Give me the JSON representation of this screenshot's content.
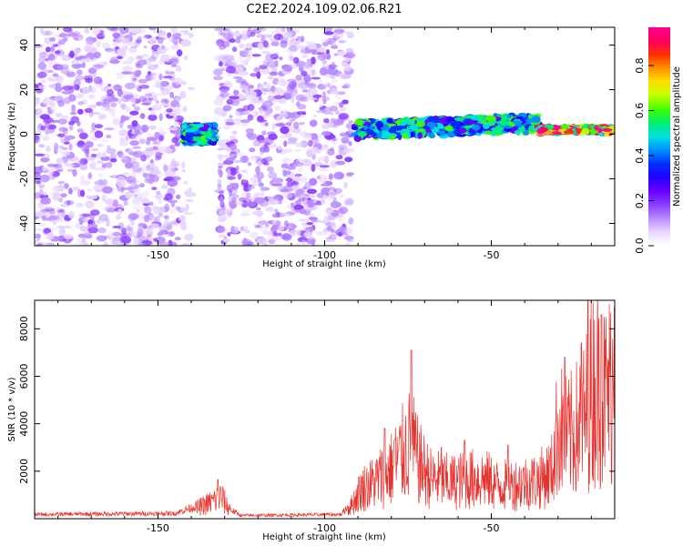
{
  "figure": {
    "title": "C2E2.2024.109.02.06.R21"
  },
  "chart_data": [
    {
      "type": "heatmap",
      "xlabel": "Height of straight line (km)",
      "ylabel": "Frequency (Hz)",
      "xlim": [
        -187,
        -13
      ],
      "ylim": [
        -50,
        48
      ],
      "xticks": [
        -150,
        -100,
        -50
      ],
      "xtick_labels": [
        "-150",
        "-100",
        "-50"
      ],
      "yticks": [
        -40,
        -20,
        0,
        20,
        40
      ],
      "ytick_labels": [
        "-40",
        "-20",
        "0",
        "20",
        "40"
      ],
      "colorbar": {
        "label": "Normalized spectral amplitude",
        "range": [
          0,
          0.97
        ],
        "ticks": [
          0.0,
          0.2,
          0.4,
          0.6,
          0.8
        ],
        "tick_labels": [
          "0.0",
          "0.2",
          "0.4",
          "0.6",
          "0.8"
        ],
        "colormap": [
          "#ffffff",
          "#e8d6ff",
          "#b98cff",
          "#8a3cff",
          "#6a00ff",
          "#2200ff",
          "#0030ff",
          "#0090ff",
          "#00e0e0",
          "#00f070",
          "#40ff00",
          "#c0ff00",
          "#ffe000",
          "#ff9000",
          "#ff3000",
          "#ff0060",
          "#ff0090"
        ]
      },
      "regions": [
        {
          "x": [
            -187,
            -143
          ],
          "f_center": 0,
          "f_width": 50,
          "amp": 0.12,
          "kind": "noise"
        },
        {
          "x": [
            -143,
            -140
          ],
          "f_center": 0,
          "f_width": 50,
          "amp": 0.06,
          "kind": "sparse"
        },
        {
          "x": [
            -142,
            -133
          ],
          "f_center": 0,
          "f_width": 4,
          "amp": 0.45,
          "kind": "signal"
        },
        {
          "x": [
            -132,
            -92
          ],
          "f_center": 0,
          "f_width": 50,
          "amp": 0.12,
          "kind": "noise"
        },
        {
          "x": [
            -91,
            -36
          ],
          "f_center": 2,
          "f_width": 4,
          "amp": 0.45,
          "kind": "signal"
        },
        {
          "x": [
            -36,
            -13
          ],
          "f_center": 2,
          "f_width": 1.5,
          "amp": 0.85,
          "kind": "strong"
        }
      ],
      "grid": false
    },
    {
      "type": "line",
      "xlabel": "Height of straight line (km)",
      "ylabel": "SNR (10 * v/v)",
      "xlim": [
        -187,
        -13
      ],
      "ylim": [
        0,
        9200
      ],
      "xticks": [
        -150,
        -100,
        -50
      ],
      "xtick_labels": [
        "-150",
        "-100",
        "-50"
      ],
      "yticks": [
        2000,
        4000,
        6000,
        8000
      ],
      "ytick_labels": [
        "2000",
        "4000",
        "6000",
        "8000"
      ],
      "series": [
        {
          "color": "#e8322e",
          "envelope": [
            [
              -187,
              200
            ],
            [
              -145,
              250
            ],
            [
              -140,
              500
            ],
            [
              -135,
              900
            ],
            [
              -131,
              1300
            ],
            [
              -128,
              400
            ],
            [
              -125,
              150
            ],
            [
              -95,
              200
            ],
            [
              -92,
              800
            ],
            [
              -89,
              1800
            ],
            [
              -85,
              2200
            ],
            [
              -80,
              3000
            ],
            [
              -77,
              3800
            ],
            [
              -74,
              4600
            ],
            [
              -72,
              3400
            ],
            [
              -68,
              2400
            ],
            [
              -62,
              2200
            ],
            [
              -56,
              2400
            ],
            [
              -52,
              2400
            ],
            [
              -48,
              2000
            ],
            [
              -42,
              2100
            ],
            [
              -36,
              2300
            ],
            [
              -32,
              2800
            ],
            [
              -30,
              5500
            ],
            [
              -27,
              4800
            ],
            [
              -22,
              6000
            ],
            [
              -20,
              7800
            ],
            [
              -18,
              8200
            ],
            [
              -16,
              7300
            ],
            [
              -14,
              8000
            ],
            [
              -13,
              8300
            ]
          ],
          "spikes": [
            [
              -132,
              1650
            ],
            [
              -74,
              7100
            ],
            [
              -82,
              3800
            ],
            [
              -79,
              3300
            ],
            [
              -65,
              3000
            ],
            [
              -58,
              3300
            ],
            [
              -45,
              3100
            ],
            [
              -28,
              6800
            ],
            [
              -23,
              7400
            ],
            [
              -21,
              9300
            ],
            [
              -17,
              8600
            ],
            [
              -13,
              8900
            ]
          ]
        }
      ],
      "grid": false
    }
  ]
}
